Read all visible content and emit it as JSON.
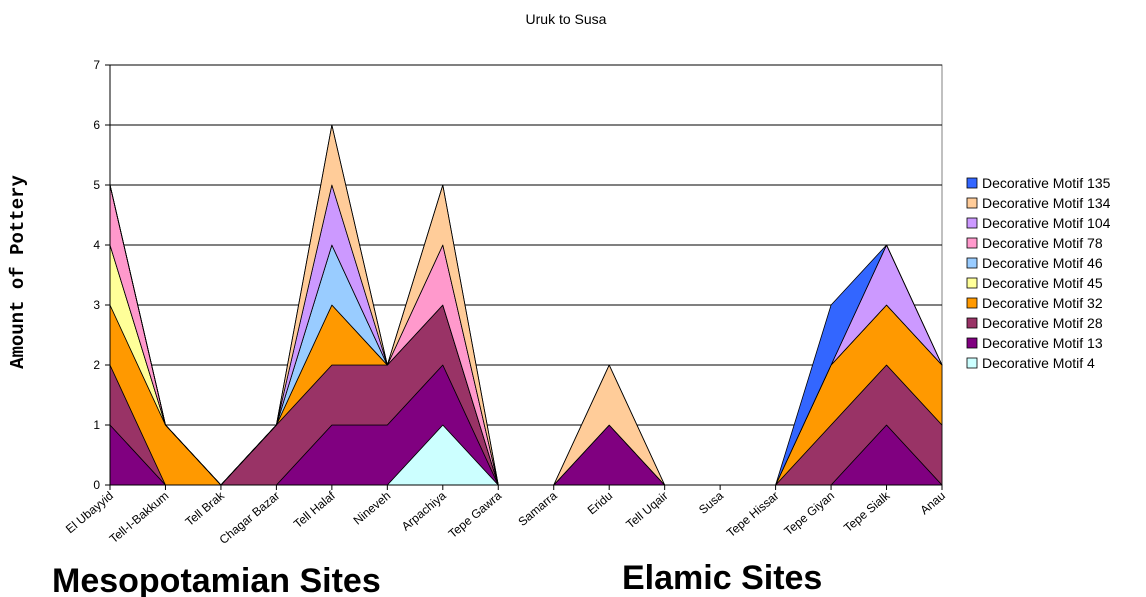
{
  "chart_data": {
    "type": "area",
    "stacked": true,
    "title": "Uruk to Susa",
    "xlabel": "",
    "ylabel": "Amount of Pottery",
    "ylim": [
      0,
      7
    ],
    "yticks": [
      0,
      1,
      2,
      3,
      4,
      5,
      6,
      7
    ],
    "grid": true,
    "legend_position": "right",
    "categories": [
      "El Ubayyid",
      "Tell-I-Bakkum",
      "Tell Brak",
      "Chagar Bazar",
      "Tell Halaf",
      "Nineveh",
      "Arpachiya",
      "Tepe Gawra",
      "Samarra",
      "Eridu",
      "Tell Uqair",
      "Susa",
      "Tepe Hissar",
      "Tepe Giyan",
      "Tepe Sialk",
      "Anau"
    ],
    "series": [
      {
        "name": "Decorative Motif 4",
        "color": "#ccffff",
        "values": [
          0,
          0,
          0,
          0,
          0,
          0,
          1,
          0,
          0,
          0,
          0,
          0,
          0,
          0,
          0,
          0
        ]
      },
      {
        "name": "Decorative Motif 13",
        "color": "#800080",
        "values": [
          1,
          0,
          0,
          0,
          1,
          1,
          1,
          0,
          0,
          1,
          0,
          0,
          0,
          0,
          1,
          0
        ]
      },
      {
        "name": "Decorative Motif 28",
        "color": "#993366",
        "values": [
          1,
          0,
          0,
          1,
          1,
          1,
          1,
          0,
          0,
          0,
          0,
          0,
          0,
          1,
          1,
          1
        ]
      },
      {
        "name": "Decorative Motif 32",
        "color": "#ff9900",
        "values": [
          1,
          1,
          0,
          0,
          1,
          0,
          0,
          0,
          0,
          0,
          0,
          0,
          0,
          1,
          1,
          1
        ]
      },
      {
        "name": "Decorative Motif 45",
        "color": "#ffff99",
        "values": [
          1,
          0,
          0,
          0,
          0,
          0,
          0,
          0,
          0,
          0,
          0,
          0,
          0,
          0,
          0,
          0
        ]
      },
      {
        "name": "Decorative Motif 46",
        "color": "#99ccff",
        "values": [
          0,
          0,
          0,
          0,
          1,
          0,
          0,
          0,
          0,
          0,
          0,
          0,
          0,
          0,
          0,
          0
        ]
      },
      {
        "name": "Decorative Motif 78",
        "color": "#ff99cc",
        "values": [
          1,
          0,
          0,
          0,
          0,
          0,
          1,
          0,
          0,
          0,
          0,
          0,
          0,
          0,
          0,
          0
        ]
      },
      {
        "name": "Decorative Motif 104",
        "color": "#cc99ff",
        "values": [
          0,
          0,
          0,
          0,
          1,
          0,
          0,
          0,
          0,
          0,
          0,
          0,
          0,
          0,
          1,
          0
        ]
      },
      {
        "name": "Decorative Motif 134",
        "color": "#ffcc99",
        "values": [
          0,
          0,
          0,
          0,
          1,
          0,
          1,
          0,
          0,
          1,
          0,
          0,
          0,
          0,
          0,
          0
        ]
      },
      {
        "name": "Decorative Motif 135",
        "color": "#3366ff",
        "values": [
          0,
          0,
          0,
          0,
          0,
          0,
          0,
          0,
          0,
          0,
          0,
          0,
          0,
          1,
          0,
          0
        ]
      }
    ],
    "legend_order": [
      "Decorative Motif 135",
      "Decorative Motif 134",
      "Decorative Motif 104",
      "Decorative Motif 78",
      "Decorative Motif 46",
      "Decorative Motif 45",
      "Decorative Motif 32",
      "Decorative Motif 28",
      "Decorative Motif 13",
      "Decorative Motif 4"
    ],
    "annotations": [
      "Mesopotamian Sites",
      "Elamic Sites"
    ]
  }
}
